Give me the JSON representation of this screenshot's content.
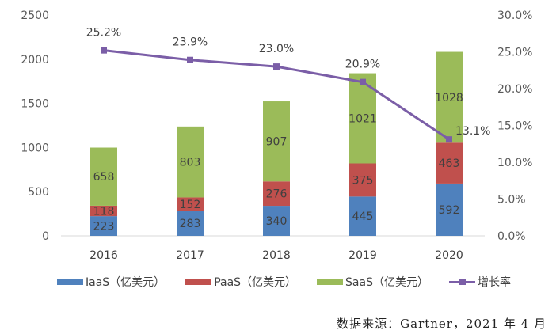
{
  "chart_data": {
    "type": "bar",
    "stacked": true,
    "categories": [
      "2016",
      "2017",
      "2018",
      "2019",
      "2020"
    ],
    "series": [
      {
        "name": "IaaS（亿美元）",
        "values": [
          223,
          283,
          340,
          445,
          592
        ],
        "color": "#4f81bd"
      },
      {
        "name": "PaaS（亿美元）",
        "values": [
          118,
          152,
          276,
          375,
          463
        ],
        "color": "#c0504d"
      },
      {
        "name": "SaaS（亿美元）",
        "values": [
          658,
          803,
          907,
          1021,
          1028
        ],
        "color": "#9bbb59"
      }
    ],
    "line_series": {
      "name": "增长率",
      "values": [
        25.2,
        23.9,
        23.0,
        20.9,
        13.1
      ],
      "labels": [
        "25.2%",
        "23.9%",
        "23.0%",
        "20.9%",
        "13.1%"
      ],
      "color": "#7b5ea7",
      "axis": "right"
    },
    "ylim": [
      0,
      2500
    ],
    "yticks": [
      "0",
      "500",
      "1000",
      "1500",
      "2000",
      "2500"
    ],
    "y2lim": [
      0,
      30
    ],
    "y2ticks": [
      "0.0%",
      "5.0%",
      "10.0%",
      "15.0%",
      "20.0%",
      "25.0%",
      "30.0%"
    ],
    "grid": false,
    "legend_position": "bottom"
  },
  "source": "数据来源：Gartner，2021 年 4 月"
}
